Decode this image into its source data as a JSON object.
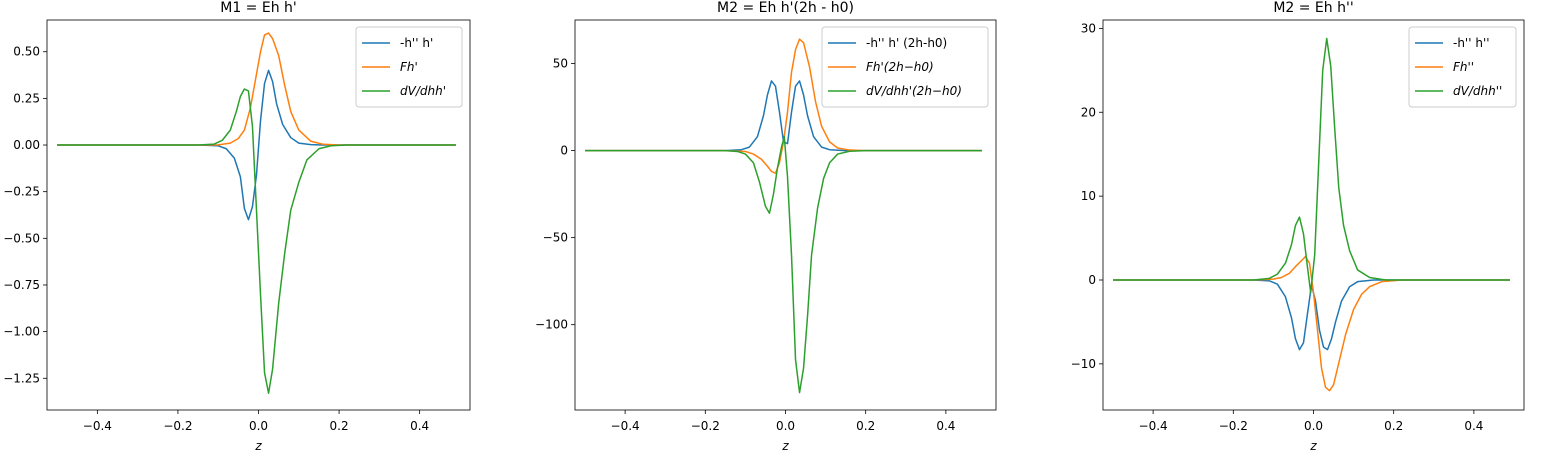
{
  "chart_data": [
    {
      "type": "line",
      "title": "M1 = Eh h'",
      "xlabel": "z",
      "ylabel": "",
      "xlim": [
        -0.525,
        0.525
      ],
      "ylim": [
        -1.42,
        0.67
      ],
      "xticks": [
        -0.4,
        -0.2,
        0.0,
        0.2,
        0.4
      ],
      "xtick_labels": [
        "−0.4",
        "−0.2",
        "0.0",
        "0.2",
        "0.4"
      ],
      "yticks": [
        0.5,
        0.25,
        0.0,
        -0.25,
        -0.5,
        -0.75,
        -1.0,
        -1.25
      ],
      "ytick_labels": [
        "0.50",
        "0.25",
        "0.00",
        "−0.25",
        "−0.50",
        "−0.75",
        "−1.00",
        "−1.25"
      ],
      "legend_position": "top-right",
      "grid": false,
      "series": [
        {
          "name": "-h'' h'",
          "italic": false,
          "color": "#1f77b4",
          "points": [
            [
              -0.5,
              0
            ],
            [
              -0.3,
              0
            ],
            [
              -0.15,
              0
            ],
            [
              -0.1,
              -0.004
            ],
            [
              -0.08,
              -0.02
            ],
            [
              -0.06,
              -0.07
            ],
            [
              -0.045,
              -0.17
            ],
            [
              -0.035,
              -0.34
            ],
            [
              -0.025,
              -0.4
            ],
            [
              -0.015,
              -0.33
            ],
            [
              -0.005,
              -0.16
            ],
            [
              0.005,
              0.13
            ],
            [
              0.015,
              0.33
            ],
            [
              0.025,
              0.4
            ],
            [
              0.035,
              0.34
            ],
            [
              0.045,
              0.22
            ],
            [
              0.06,
              0.11
            ],
            [
              0.08,
              0.04
            ],
            [
              0.1,
              0.01
            ],
            [
              0.13,
              0.002
            ],
            [
              0.16,
              0
            ],
            [
              0.3,
              0
            ],
            [
              0.49,
              0
            ]
          ]
        },
        {
          "name": "Fh'",
          "italic": true,
          "color": "#ff7f0e",
          "points": [
            [
              -0.5,
              0
            ],
            [
              -0.3,
              0
            ],
            [
              -0.15,
              0
            ],
            [
              -0.1,
              0.001
            ],
            [
              -0.07,
              0.01
            ],
            [
              -0.05,
              0.035
            ],
            [
              -0.035,
              0.08
            ],
            [
              -0.02,
              0.2
            ],
            [
              -0.005,
              0.38
            ],
            [
              0.005,
              0.5
            ],
            [
              0.015,
              0.59
            ],
            [
              0.025,
              0.6
            ],
            [
              0.035,
              0.57
            ],
            [
              0.05,
              0.48
            ],
            [
              0.065,
              0.32
            ],
            [
              0.08,
              0.18
            ],
            [
              0.1,
              0.08
            ],
            [
              0.13,
              0.02
            ],
            [
              0.16,
              0.004
            ],
            [
              0.2,
              0
            ],
            [
              0.3,
              0
            ],
            [
              0.49,
              0
            ]
          ]
        },
        {
          "name": "dV/dhh'",
          "italic": true,
          "color": "#2ca02c",
          "points": [
            [
              -0.5,
              0
            ],
            [
              -0.3,
              0
            ],
            [
              -0.15,
              0
            ],
            [
              -0.11,
              0.005
            ],
            [
              -0.09,
              0.025
            ],
            [
              -0.07,
              0.08
            ],
            [
              -0.055,
              0.18
            ],
            [
              -0.045,
              0.26
            ],
            [
              -0.035,
              0.3
            ],
            [
              -0.025,
              0.29
            ],
            [
              -0.015,
              0.1
            ],
            [
              -0.005,
              -0.35
            ],
            [
              0.005,
              -0.8
            ],
            [
              0.015,
              -1.22
            ],
            [
              0.025,
              -1.33
            ],
            [
              0.035,
              -1.2
            ],
            [
              0.05,
              -0.85
            ],
            [
              0.065,
              -0.58
            ],
            [
              0.08,
              -0.35
            ],
            [
              0.1,
              -0.2
            ],
            [
              0.12,
              -0.08
            ],
            [
              0.15,
              -0.02
            ],
            [
              0.18,
              -0.004
            ],
            [
              0.22,
              0
            ],
            [
              0.3,
              0
            ],
            [
              0.49,
              0
            ]
          ]
        }
      ]
    },
    {
      "type": "line",
      "title": "M2 = Eh h'(2h - h0)",
      "xlabel": "z",
      "ylabel": "",
      "xlim": [
        -0.525,
        0.525
      ],
      "ylim": [
        -149,
        75
      ],
      "xticks": [
        -0.4,
        -0.2,
        0.0,
        0.2,
        0.4
      ],
      "xtick_labels": [
        "−0.4",
        "−0.2",
        "0.0",
        "0.2",
        "0.4"
      ],
      "yticks": [
        50,
        0,
        -50,
        -100
      ],
      "ytick_labels": [
        "50",
        "0",
        "−50",
        "−100"
      ],
      "legend_position": "top-right",
      "grid": false,
      "series": [
        {
          "name": "-h'' h' (2h-h0)",
          "italic": false,
          "color": "#1f77b4",
          "points": [
            [
              -0.5,
              0
            ],
            [
              -0.3,
              0
            ],
            [
              -0.15,
              0
            ],
            [
              -0.11,
              0.5
            ],
            [
              -0.09,
              2
            ],
            [
              -0.07,
              8
            ],
            [
              -0.055,
              20
            ],
            [
              -0.045,
              32
            ],
            [
              -0.035,
              40
            ],
            [
              -0.025,
              37
            ],
            [
              -0.015,
              22
            ],
            [
              -0.005,
              5
            ],
            [
              0.005,
              4
            ],
            [
              0.015,
              22
            ],
            [
              0.025,
              37
            ],
            [
              0.035,
              40
            ],
            [
              0.045,
              32
            ],
            [
              0.055,
              20
            ],
            [
              0.07,
              8
            ],
            [
              0.09,
              2
            ],
            [
              0.11,
              0.5
            ],
            [
              0.15,
              0
            ],
            [
              0.3,
              0
            ],
            [
              0.49,
              0
            ]
          ]
        },
        {
          "name": "Fh'(2h−h0)",
          "italic": true,
          "color": "#ff7f0e",
          "points": [
            [
              -0.5,
              0
            ],
            [
              -0.3,
              0
            ],
            [
              -0.15,
              0
            ],
            [
              -0.1,
              -0.5
            ],
            [
              -0.08,
              -2
            ],
            [
              -0.06,
              -5
            ],
            [
              -0.045,
              -9
            ],
            [
              -0.035,
              -12
            ],
            [
              -0.025,
              -13
            ],
            [
              -0.015,
              -7
            ],
            [
              -0.005,
              5
            ],
            [
              0.005,
              22
            ],
            [
              0.015,
              45
            ],
            [
              0.025,
              58
            ],
            [
              0.035,
              64
            ],
            [
              0.045,
              62
            ],
            [
              0.06,
              48
            ],
            [
              0.075,
              28
            ],
            [
              0.09,
              14
            ],
            [
              0.11,
              5
            ],
            [
              0.13,
              1.5
            ],
            [
              0.16,
              0.3
            ],
            [
              0.2,
              0
            ],
            [
              0.3,
              0
            ],
            [
              0.49,
              0
            ]
          ]
        },
        {
          "name": "dV/dhh'(2h−h0)",
          "italic": true,
          "color": "#2ca02c",
          "points": [
            [
              -0.5,
              0
            ],
            [
              -0.3,
              0
            ],
            [
              -0.15,
              0
            ],
            [
              -0.12,
              -0.5
            ],
            [
              -0.1,
              -2
            ],
            [
              -0.08,
              -7
            ],
            [
              -0.065,
              -18
            ],
            [
              -0.05,
              -32
            ],
            [
              -0.04,
              -36
            ],
            [
              -0.03,
              -25
            ],
            [
              -0.02,
              -10
            ],
            [
              -0.01,
              2
            ],
            [
              -0.003,
              8
            ],
            [
              0.005,
              -15
            ],
            [
              0.015,
              -60
            ],
            [
              0.025,
              -120
            ],
            [
              0.035,
              -139
            ],
            [
              0.045,
              -125
            ],
            [
              0.055,
              -95
            ],
            [
              0.065,
              -60
            ],
            [
              0.08,
              -33
            ],
            [
              0.095,
              -16
            ],
            [
              0.11,
              -7
            ],
            [
              0.13,
              -2
            ],
            [
              0.16,
              -0.4
            ],
            [
              0.2,
              0
            ],
            [
              0.3,
              0
            ],
            [
              0.49,
              0
            ]
          ]
        }
      ]
    },
    {
      "type": "line",
      "title": "M2 = Eh h''",
      "xlabel": "z",
      "ylabel": "",
      "xlim": [
        -0.525,
        0.525
      ],
      "ylim": [
        -15.5,
        31
      ],
      "xticks": [
        -0.4,
        -0.2,
        0.0,
        0.2,
        0.4
      ],
      "xtick_labels": [
        "−0.4",
        "−0.2",
        "0.0",
        "0.2",
        "0.4"
      ],
      "yticks": [
        30,
        20,
        10,
        0,
        -10
      ],
      "ytick_labels": [
        "30",
        "20",
        "10",
        "0",
        "−10"
      ],
      "legend_position": "top-right",
      "grid": false,
      "series": [
        {
          "name": "-h'' h''",
          "italic": false,
          "color": "#1f77b4",
          "points": [
            [
              -0.5,
              0
            ],
            [
              -0.3,
              0
            ],
            [
              -0.15,
              0
            ],
            [
              -0.11,
              -0.1
            ],
            [
              -0.09,
              -0.5
            ],
            [
              -0.07,
              -2
            ],
            [
              -0.055,
              -4.5
            ],
            [
              -0.045,
              -7
            ],
            [
              -0.035,
              -8.3
            ],
            [
              -0.025,
              -7.5
            ],
            [
              -0.015,
              -4
            ],
            [
              -0.005,
              -0.6
            ],
            [
              0.005,
              -2.5
            ],
            [
              0.015,
              -6
            ],
            [
              0.025,
              -8
            ],
            [
              0.035,
              -8.3
            ],
            [
              0.045,
              -7
            ],
            [
              0.055,
              -5
            ],
            [
              0.07,
              -2.5
            ],
            [
              0.09,
              -0.8
            ],
            [
              0.11,
              -0.2
            ],
            [
              0.15,
              0
            ],
            [
              0.3,
              0
            ],
            [
              0.49,
              0
            ]
          ]
        },
        {
          "name": "Fh''",
          "italic": true,
          "color": "#ff7f0e",
          "points": [
            [
              -0.5,
              0
            ],
            [
              -0.3,
              0
            ],
            [
              -0.15,
              0
            ],
            [
              -0.1,
              0.1
            ],
            [
              -0.08,
              0.3
            ],
            [
              -0.06,
              0.8
            ],
            [
              -0.045,
              1.6
            ],
            [
              -0.03,
              2.3
            ],
            [
              -0.02,
              2.8
            ],
            [
              -0.01,
              2
            ],
            [
              0.0,
              -1.5
            ],
            [
              0.01,
              -6
            ],
            [
              0.02,
              -10.5
            ],
            [
              0.03,
              -12.8
            ],
            [
              0.04,
              -13.2
            ],
            [
              0.05,
              -12.5
            ],
            [
              0.065,
              -9.5
            ],
            [
              0.08,
              -6.5
            ],
            [
              0.1,
              -3.5
            ],
            [
              0.12,
              -1.7
            ],
            [
              0.14,
              -0.8
            ],
            [
              0.17,
              -0.2
            ],
            [
              0.22,
              0
            ],
            [
              0.3,
              0
            ],
            [
              0.49,
              0
            ]
          ]
        },
        {
          "name": "dV/dhh''",
          "italic": true,
          "color": "#2ca02c",
          "points": [
            [
              -0.5,
              0
            ],
            [
              -0.3,
              0
            ],
            [
              -0.15,
              0
            ],
            [
              -0.11,
              0.2
            ],
            [
              -0.09,
              0.7
            ],
            [
              -0.07,
              2
            ],
            [
              -0.055,
              4.2
            ],
            [
              -0.045,
              6.5
            ],
            [
              -0.035,
              7.5
            ],
            [
              -0.025,
              5.5
            ],
            [
              -0.015,
              1.5
            ],
            [
              -0.007,
              -1.5
            ],
            [
              0.003,
              3
            ],
            [
              0.013,
              14
            ],
            [
              0.023,
              25
            ],
            [
              0.033,
              28.8
            ],
            [
              0.043,
              25.5
            ],
            [
              0.053,
              18
            ],
            [
              0.063,
              11
            ],
            [
              0.075,
              6.5
            ],
            [
              0.09,
              3.5
            ],
            [
              0.11,
              1.2
            ],
            [
              0.14,
              0.3
            ],
            [
              0.18,
              0
            ],
            [
              0.3,
              0
            ],
            [
              0.49,
              0
            ]
          ]
        }
      ]
    }
  ]
}
